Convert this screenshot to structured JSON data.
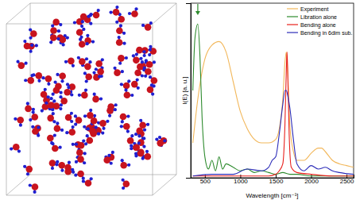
{
  "chart_data": {
    "type": "line",
    "x_label": "Wavelength [cm⁻¹]",
    "y_label": "I(E) [a. u.]",
    "xlim": [
      300,
      2600
    ],
    "xticks": [
      500,
      1000,
      1500,
      2000,
      2500
    ],
    "ylim": [
      0,
      1
    ],
    "tick_labels": "x",
    "legend": "upper right",
    "series": [
      {
        "name": "Experiment",
        "color": "#f2b75a",
        "x": [
          330,
          400,
          500,
          600,
          700,
          800,
          900,
          1000,
          1100,
          1200,
          1300,
          1400,
          1500,
          1550,
          1600,
          1630,
          1650,
          1670,
          1700,
          1750,
          1800,
          1900,
          2000,
          2100,
          2150,
          2200,
          2300,
          2400,
          2500,
          2600
        ],
        "values": [
          0.2,
          0.45,
          0.68,
          0.76,
          0.78,
          0.72,
          0.55,
          0.38,
          0.28,
          0.22,
          0.2,
          0.2,
          0.22,
          0.28,
          0.45,
          0.66,
          0.72,
          0.6,
          0.3,
          0.15,
          0.1,
          0.1,
          0.14,
          0.17,
          0.17,
          0.15,
          0.1,
          0.08,
          0.07,
          0.06
        ]
      },
      {
        "name": "Libration alone",
        "color": "#2e8b2e",
        "x": [
          330,
          360,
          400,
          430,
          460,
          500,
          550,
          600,
          650,
          700,
          750,
          800,
          900,
          1000,
          1100,
          1200,
          1300,
          1400,
          1500,
          1600,
          1700,
          1800,
          2000,
          2200,
          2400,
          2600
        ],
        "values": [
          0.5,
          0.8,
          0.88,
          0.7,
          0.35,
          0.12,
          0.05,
          0.1,
          0.04,
          0.12,
          0.05,
          0.08,
          0.06,
          0.04,
          0.05,
          0.03,
          0.04,
          0.03,
          0.02,
          0.03,
          0.02,
          0.02,
          0.01,
          0.01,
          0.01,
          0.01
        ]
      },
      {
        "name": "Bending alone",
        "color": "#e8201c",
        "x": [
          330,
          800,
          1200,
          1400,
          1500,
          1550,
          1600,
          1630,
          1650,
          1660,
          1670,
          1690,
          1720,
          1800,
          2000,
          2300,
          2600
        ],
        "values": [
          0.01,
          0.01,
          0.01,
          0.01,
          0.02,
          0.04,
          0.08,
          0.3,
          0.62,
          0.72,
          0.6,
          0.25,
          0.06,
          0.03,
          0.02,
          0.01,
          0.01
        ]
      },
      {
        "name": "Bending in 6dim sub.",
        "color": "#2b2bb8",
        "x": [
          330,
          600,
          900,
          1100,
          1300,
          1400,
          1450,
          1500,
          1550,
          1600,
          1630,
          1650,
          1670,
          1700,
          1750,
          1800,
          1900,
          2000,
          2100,
          2200,
          2300,
          2400,
          2600
        ],
        "values": [
          0.01,
          0.02,
          0.02,
          0.05,
          0.04,
          0.06,
          0.1,
          0.12,
          0.25,
          0.42,
          0.5,
          0.5,
          0.47,
          0.4,
          0.22,
          0.08,
          0.04,
          0.07,
          0.05,
          0.06,
          0.04,
          0.03,
          0.02
        ]
      }
    ]
  }
}
